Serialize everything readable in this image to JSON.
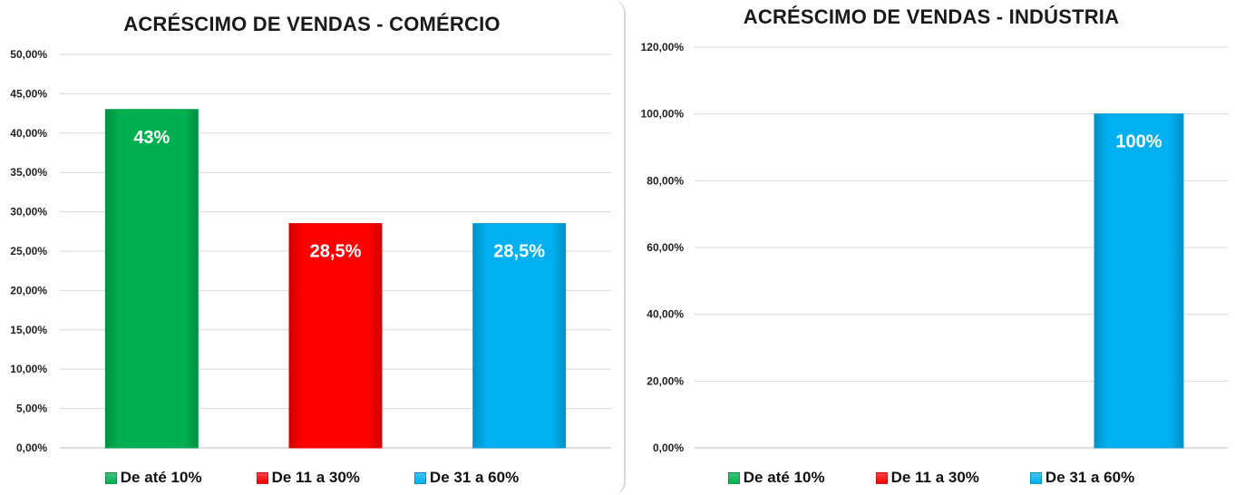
{
  "chart_data": [
    {
      "type": "bar",
      "title": "ACRÉSCIMO DE VENDAS - COMÉRCIO",
      "categories": [
        "De até 10%",
        "De 11 a 30%",
        "De 31 a 60%"
      ],
      "values": [
        43,
        28.5,
        28.5
      ],
      "data_labels": [
        "43%",
        "28,5%",
        "28,5%"
      ],
      "colors": [
        "#00b050",
        "#ff0000",
        "#00b0f0"
      ],
      "ylim": [
        0,
        50
      ],
      "yticks": [
        "0,00%",
        "5,00%",
        "10,00%",
        "15,00%",
        "20,00%",
        "25,00%",
        "30,00%",
        "35,00%",
        "40,00%",
        "45,00%",
        "50,00%"
      ],
      "grid": true,
      "legend_position": "bottom"
    },
    {
      "type": "bar",
      "title": "ACRÉSCIMO DE VENDAS - INDÚSTRIA",
      "categories": [
        "De até 10%",
        "De 11 a 30%",
        "De 31 a 60%"
      ],
      "values": [
        0,
        0,
        100
      ],
      "data_labels": [
        "",
        "",
        "100%"
      ],
      "colors": [
        "#00b050",
        "#ff0000",
        "#00b0f0"
      ],
      "ylim": [
        0,
        120
      ],
      "yticks": [
        "0,00%",
        "20,00%",
        "40,00%",
        "60,00%",
        "80,00%",
        "100,00%",
        "120,00%"
      ],
      "grid": true,
      "legend_position": "bottom"
    }
  ]
}
